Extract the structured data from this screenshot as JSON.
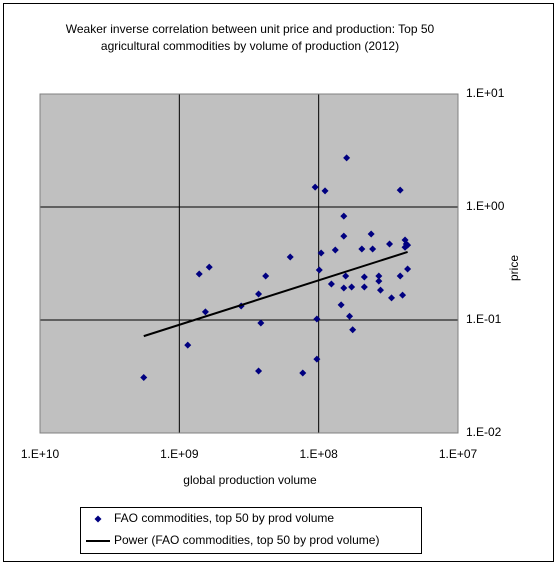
{
  "chart_data": {
    "type": "scatter",
    "title": [
      "Weaker inverse correlation between unit price and production: Top 50",
      "agricultural commodities by volume of production (2012)"
    ],
    "x_label": "global production volume",
    "y_label": "price",
    "log_x": true,
    "log_y": true,
    "grid": true,
    "legend": "bottom",
    "xlim": [
      10000000000,
      10000000
    ],
    "xticks": [
      {
        "value": 10000000000,
        "label": "1.E+10"
      },
      {
        "value": 1000000000,
        "label": "1.E+09"
      },
      {
        "value": 100000000,
        "label": "1.E+08"
      },
      {
        "value": 10000000,
        "label": "1.E+07"
      }
    ],
    "ylim": [
      0.01,
      10
    ],
    "yticks": [
      {
        "value": 10,
        "label": "1.E+01"
      },
      {
        "value": 1,
        "label": "1.E+00"
      },
      {
        "value": 0.1,
        "label": "1.E-01"
      },
      {
        "value": 0.01,
        "label": "1.E-02"
      }
    ],
    "series": [
      {
        "name": "FAO commodities, top 50 by prod volume",
        "color": "#000080",
        "marker": "diamond",
        "x": [
          1800000000,
          870000000,
          720000000,
          650000000,
          610000000,
          360000000,
          270000000,
          270000000,
          260000000,
          240000000,
          160000000,
          130000000,
          106000000,
          103000000,
          103000000,
          99000000,
          96000000,
          90000000,
          81000000,
          76000000,
          69000000,
          66000000,
          66000000,
          66000000,
          64000000,
          63000000,
          60000000,
          58000000,
          57000000,
          49000000,
          47000000,
          47000000,
          42000000,
          41000000,
          37000000,
          37000000,
          36000000,
          31000000,
          30000000,
          26000000,
          26000000,
          25000000,
          24000000,
          23500000,
          23000000,
          23000000,
          24000000
        ],
        "values": [
          0.031,
          0.06,
          0.255,
          0.118,
          0.294,
          0.133,
          0.0354,
          0.17,
          0.094,
          0.245,
          0.361,
          0.034,
          1.5,
          0.102,
          0.045,
          0.277,
          0.392,
          1.39,
          0.208,
          0.416,
          0.136,
          0.83,
          0.553,
          0.192,
          0.245,
          2.72,
          0.108,
          0.196,
          0.082,
          0.425,
          0.196,
          0.24,
          0.577,
          0.425,
          0.245,
          0.221,
          0.184,
          0.471,
          0.157,
          0.245,
          1.41,
          0.166,
          0.511,
          0.471,
          0.283,
          0.46,
          0.44
        ]
      },
      {
        "name": "Power (FAO commodities, top 50 by prod volume)",
        "color": "#000000",
        "marker": "line",
        "x": [
          1800000000,
          23000000
        ],
        "values": [
          0.072,
          0.4
        ]
      }
    ]
  }
}
